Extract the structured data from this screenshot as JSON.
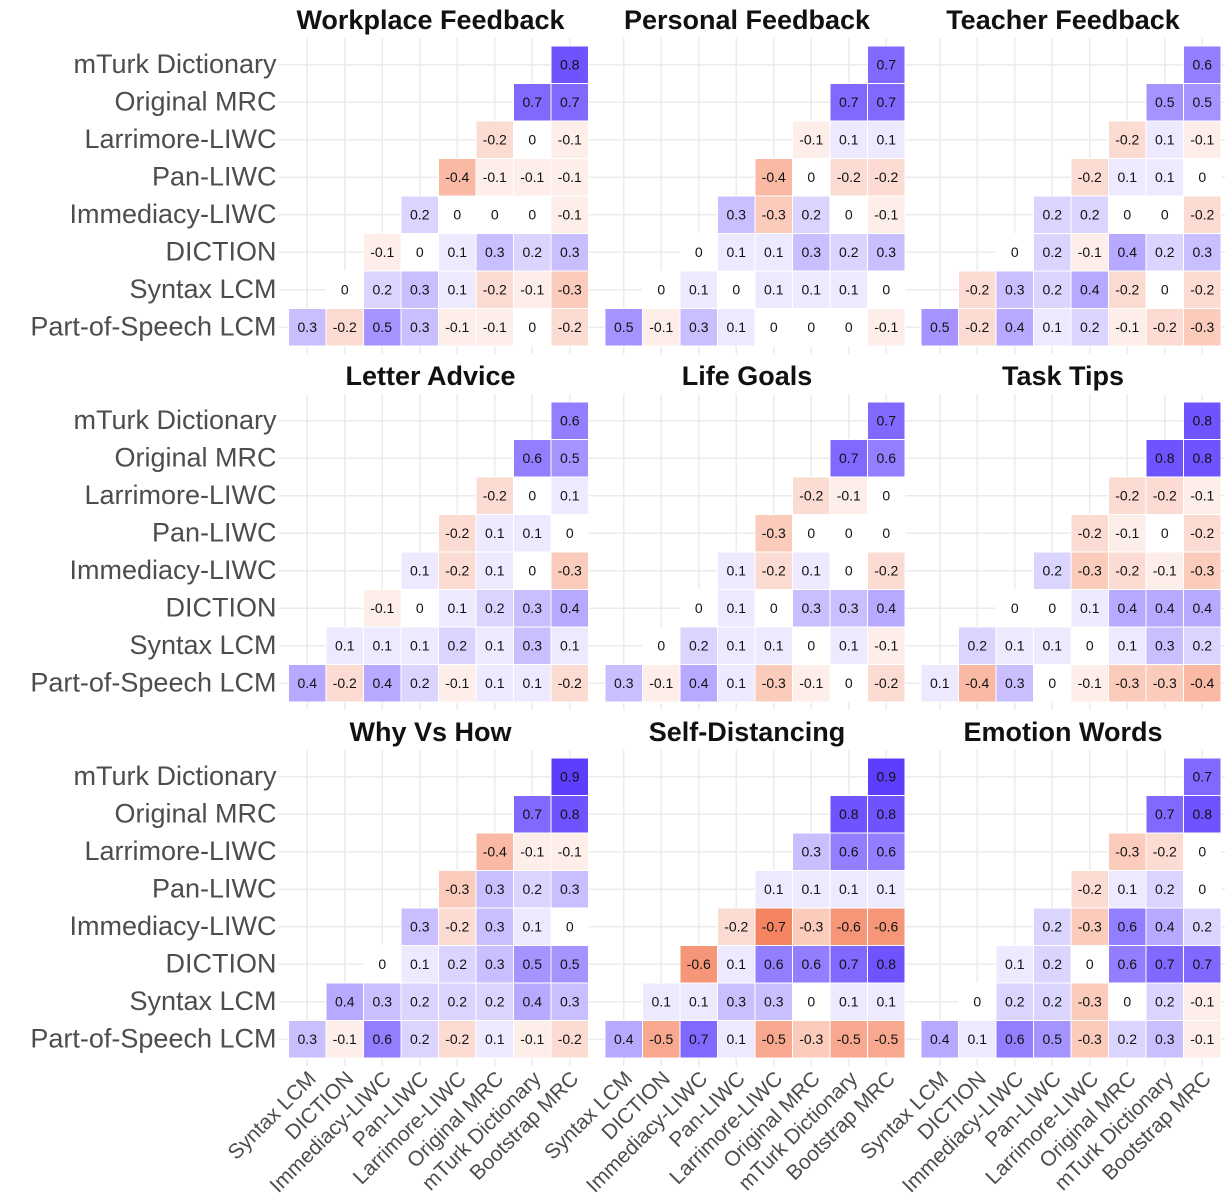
{
  "chart_data": [
    {
      "type": "heatmap",
      "title": "Workplace Feedback",
      "rows": [
        "mTurk Dictionary",
        "Original MRC",
        "Larrimore-LIWC",
        "Pan-LIWC",
        "Immediacy-LIWC",
        "DICTION",
        "Syntax LCM",
        "Part-of-Speech LCM"
      ],
      "zlim": [
        -1,
        1
      ],
      "color_low": "#f0501f",
      "color_high": "#4a28ff",
      "values": [
        [
          null,
          null,
          null,
          null,
          null,
          null,
          null,
          0.8
        ],
        [
          null,
          null,
          null,
          null,
          null,
          null,
          0.7,
          0.7
        ],
        [
          null,
          null,
          null,
          null,
          null,
          -0.2,
          0,
          -0.1
        ],
        [
          null,
          null,
          null,
          null,
          -0.4,
          -0.1,
          -0.1,
          -0.1
        ],
        [
          null,
          null,
          null,
          0.2,
          0,
          0,
          0,
          -0.1
        ],
        [
          null,
          null,
          -0.1,
          0,
          0.1,
          0.3,
          0.2,
          0.3
        ],
        [
          null,
          0,
          0.2,
          0.3,
          0.1,
          -0.2,
          -0.1,
          -0.3
        ],
        [
          0.3,
          -0.2,
          0.5,
          0.3,
          -0.1,
          -0.1,
          0,
          -0.2
        ]
      ]
    },
    {
      "type": "heatmap",
      "title": "Personal Feedback",
      "zlim": [
        -1,
        1
      ],
      "color_low": "#f0501f",
      "color_high": "#4a28ff",
      "values": [
        [
          null,
          null,
          null,
          null,
          null,
          null,
          null,
          0.7
        ],
        [
          null,
          null,
          null,
          null,
          null,
          null,
          0.7,
          0.7
        ],
        [
          null,
          null,
          null,
          null,
          null,
          -0.1,
          0.1,
          0.1
        ],
        [
          null,
          null,
          null,
          null,
          -0.4,
          0,
          -0.2,
          -0.2
        ],
        [
          null,
          null,
          null,
          0.3,
          -0.3,
          0.2,
          0,
          -0.1
        ],
        [
          null,
          null,
          0,
          0.1,
          0.1,
          0.3,
          0.2,
          0.3
        ],
        [
          null,
          0,
          0.1,
          0,
          0.1,
          0.1,
          0.1,
          0
        ],
        [
          0.5,
          -0.1,
          0.3,
          0.1,
          0,
          0,
          0,
          -0.1
        ]
      ]
    },
    {
      "type": "heatmap",
      "title": "Teacher Feedback",
      "zlim": [
        -1,
        1
      ],
      "color_low": "#f0501f",
      "color_high": "#4a28ff",
      "values": [
        [
          null,
          null,
          null,
          null,
          null,
          null,
          null,
          0.6
        ],
        [
          null,
          null,
          null,
          null,
          null,
          null,
          0.5,
          0.5
        ],
        [
          null,
          null,
          null,
          null,
          null,
          -0.2,
          0.1,
          -0.1
        ],
        [
          null,
          null,
          null,
          null,
          -0.2,
          0.1,
          0.1,
          0
        ],
        [
          null,
          null,
          null,
          0.2,
          0.2,
          0,
          0,
          -0.2
        ],
        [
          null,
          null,
          0,
          0.2,
          -0.1,
          0.4,
          0.2,
          0.3
        ],
        [
          null,
          -0.2,
          0.3,
          0.2,
          0.4,
          -0.2,
          0,
          -0.2
        ],
        [
          0.5,
          -0.2,
          0.4,
          0.1,
          0.2,
          -0.1,
          -0.2,
          -0.3
        ]
      ]
    },
    {
      "type": "heatmap",
      "title": "Letter Advice",
      "rows": [
        "mTurk Dictionary",
        "Original MRC",
        "Larrimore-LIWC",
        "Pan-LIWC",
        "Immediacy-LIWC",
        "DICTION",
        "Syntax LCM",
        "Part-of-Speech LCM"
      ],
      "zlim": [
        -1,
        1
      ],
      "color_low": "#f0501f",
      "color_high": "#4a28ff",
      "values": [
        [
          null,
          null,
          null,
          null,
          null,
          null,
          null,
          0.6
        ],
        [
          null,
          null,
          null,
          null,
          null,
          null,
          0.6,
          0.5
        ],
        [
          null,
          null,
          null,
          null,
          null,
          -0.2,
          0,
          0.1
        ],
        [
          null,
          null,
          null,
          null,
          -0.2,
          0.1,
          0.1,
          0
        ],
        [
          null,
          null,
          null,
          0.1,
          -0.2,
          0.1,
          0,
          -0.3
        ],
        [
          null,
          null,
          -0.1,
          0,
          0.1,
          0.2,
          0.3,
          0.4
        ],
        [
          null,
          0.1,
          0.1,
          0.1,
          0.2,
          0.1,
          0.3,
          0.1
        ],
        [
          0.4,
          -0.2,
          0.4,
          0.2,
          -0.1,
          0.1,
          0.1,
          -0.2
        ]
      ]
    },
    {
      "type": "heatmap",
      "title": "Life Goals",
      "zlim": [
        -1,
        1
      ],
      "color_low": "#f0501f",
      "color_high": "#4a28ff",
      "values": [
        [
          null,
          null,
          null,
          null,
          null,
          null,
          null,
          0.7
        ],
        [
          null,
          null,
          null,
          null,
          null,
          null,
          0.7,
          0.6
        ],
        [
          null,
          null,
          null,
          null,
          null,
          -0.2,
          -0.1,
          0
        ],
        [
          null,
          null,
          null,
          null,
          -0.3,
          0,
          0,
          0
        ],
        [
          null,
          null,
          null,
          0.1,
          -0.2,
          0.1,
          0,
          -0.2
        ],
        [
          null,
          null,
          0,
          0.1,
          0,
          0.3,
          0.3,
          0.4
        ],
        [
          null,
          0,
          0.2,
          0.1,
          0.1,
          0,
          0.1,
          -0.1
        ],
        [
          0.3,
          -0.1,
          0.4,
          0.1,
          -0.3,
          -0.1,
          0,
          -0.2
        ]
      ]
    },
    {
      "type": "heatmap",
      "title": "Task Tips",
      "zlim": [
        -1,
        1
      ],
      "color_low": "#f0501f",
      "color_high": "#4a28ff",
      "values": [
        [
          null,
          null,
          null,
          null,
          null,
          null,
          null,
          0.8
        ],
        [
          null,
          null,
          null,
          null,
          null,
          null,
          0.8,
          0.8
        ],
        [
          null,
          null,
          null,
          null,
          null,
          -0.2,
          -0.2,
          -0.1
        ],
        [
          null,
          null,
          null,
          null,
          -0.2,
          -0.1,
          0,
          -0.2
        ],
        [
          null,
          null,
          null,
          0.2,
          -0.3,
          -0.2,
          -0.1,
          -0.3
        ],
        [
          null,
          null,
          0,
          0,
          0.1,
          0.4,
          0.4,
          0.4
        ],
        [
          null,
          0.2,
          0.1,
          0.1,
          0,
          0.1,
          0.3,
          0.2
        ],
        [
          0.1,
          -0.4,
          0.3,
          0,
          -0.1,
          -0.3,
          -0.3,
          -0.4
        ]
      ]
    },
    {
      "type": "heatmap",
      "title": "Why Vs How",
      "rows": [
        "mTurk Dictionary",
        "Original MRC",
        "Larrimore-LIWC",
        "Pan-LIWC",
        "Immediacy-LIWC",
        "DICTION",
        "Syntax LCM",
        "Part-of-Speech LCM"
      ],
      "columns": [
        "Syntax LCM",
        "DICTION",
        "Immediacy-LIWC",
        "Pan-LIWC",
        "Larrimore-LIWC",
        "Original MRC",
        "mTurk Dictionary",
        "Bootstrap MRC"
      ],
      "zlim": [
        -1,
        1
      ],
      "color_low": "#f0501f",
      "color_high": "#4a28ff",
      "values": [
        [
          null,
          null,
          null,
          null,
          null,
          null,
          null,
          0.9
        ],
        [
          null,
          null,
          null,
          null,
          null,
          null,
          0.7,
          0.8
        ],
        [
          null,
          null,
          null,
          null,
          null,
          -0.4,
          -0.1,
          -0.1
        ],
        [
          null,
          null,
          null,
          null,
          -0.3,
          0.3,
          0.2,
          0.3
        ],
        [
          null,
          null,
          null,
          0.3,
          -0.2,
          0.3,
          0.1,
          0
        ],
        [
          null,
          null,
          0,
          0.1,
          0.2,
          0.3,
          0.5,
          0.5
        ],
        [
          null,
          0.4,
          0.3,
          0.2,
          0.2,
          0.2,
          0.4,
          0.3
        ],
        [
          0.3,
          -0.1,
          0.6,
          0.2,
          -0.2,
          0.1,
          -0.1,
          -0.2
        ]
      ]
    },
    {
      "type": "heatmap",
      "title": "Self-Distancing",
      "columns": [
        "Syntax LCM",
        "DICTION",
        "Immediacy-LIWC",
        "Pan-LIWC",
        "Larrimore-LIWC",
        "Original MRC",
        "mTurk Dictionary",
        "Bootstrap MRC"
      ],
      "zlim": [
        -1,
        1
      ],
      "color_low": "#f0501f",
      "color_high": "#4a28ff",
      "values": [
        [
          null,
          null,
          null,
          null,
          null,
          null,
          null,
          0.9
        ],
        [
          null,
          null,
          null,
          null,
          null,
          null,
          0.8,
          0.8
        ],
        [
          null,
          null,
          null,
          null,
          null,
          0.3,
          0.6,
          0.6
        ],
        [
          null,
          null,
          null,
          null,
          0.1,
          0.1,
          0.1,
          0.1
        ],
        [
          null,
          null,
          null,
          -0.2,
          -0.7,
          -0.3,
          -0.6,
          -0.6
        ],
        [
          null,
          null,
          -0.6,
          0.1,
          0.6,
          0.6,
          0.7,
          0.8
        ],
        [
          null,
          0.1,
          0.1,
          0.3,
          0.3,
          0,
          0.1,
          0.1
        ],
        [
          0.4,
          -0.5,
          0.7,
          0.1,
          -0.5,
          -0.3,
          -0.5,
          -0.5
        ]
      ]
    },
    {
      "type": "heatmap",
      "title": "Emotion Words",
      "columns": [
        "Syntax LCM",
        "DICTION",
        "Immediacy-LIWC",
        "Pan-LIWC",
        "Larrimore-LIWC",
        "Original MRC",
        "mTurk Dictionary",
        "Bootstrap MRC"
      ],
      "zlim": [
        -1,
        1
      ],
      "color_low": "#f0501f",
      "color_high": "#4a28ff",
      "values": [
        [
          null,
          null,
          null,
          null,
          null,
          null,
          null,
          0.7
        ],
        [
          null,
          null,
          null,
          null,
          null,
          null,
          0.7,
          0.8
        ],
        [
          null,
          null,
          null,
          null,
          null,
          -0.3,
          -0.2,
          0
        ],
        [
          null,
          null,
          null,
          null,
          -0.2,
          0.1,
          0.2,
          0
        ],
        [
          null,
          null,
          null,
          0.2,
          -0.3,
          0.6,
          0.4,
          0.2
        ],
        [
          null,
          null,
          0.1,
          0.2,
          0,
          0.6,
          0.7,
          0.7
        ],
        [
          null,
          0,
          0.2,
          0.2,
          -0.3,
          0,
          0.2,
          -0.1
        ],
        [
          0.4,
          0.1,
          0.6,
          0.5,
          -0.3,
          0.2,
          0.3,
          -0.1
        ]
      ]
    }
  ]
}
